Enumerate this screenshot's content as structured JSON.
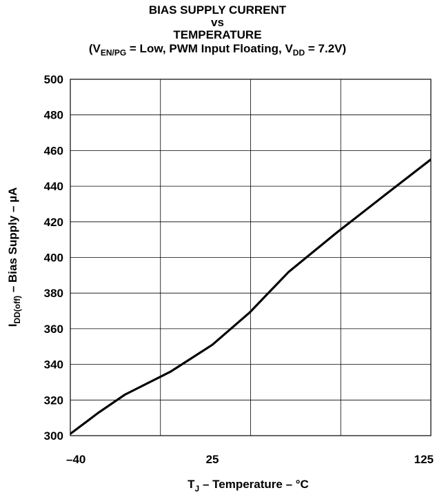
{
  "chart_data": {
    "type": "line",
    "title_lines": [
      "BIAS SUPPLY CURRENT",
      "vs",
      "TEMPERATURE"
    ],
    "condition": {
      "open": "(V",
      "sub1": "EN/PG",
      "mid": " = Low, PWM Input Floating, V",
      "sub2": "DD",
      "close": " = 7.2V)"
    },
    "xlabel": {
      "main": "T",
      "sub": "J",
      "rest": " – Temperature – °C"
    },
    "ylabel": {
      "main": "I",
      "sub": "DD(off)",
      "rest": " – Bias Supply – µA"
    },
    "xlim": [
      -40,
      125
    ],
    "ylim": [
      300,
      500
    ],
    "x_ticks": [
      -40,
      25,
      125
    ],
    "x_tick_labels": [
      "–40",
      "25",
      "125"
    ],
    "x_gridlines": [
      -40,
      1.25,
      42.5,
      83.75,
      125
    ],
    "y_ticks": [
      300,
      320,
      340,
      360,
      380,
      400,
      420,
      440,
      460,
      480,
      500
    ],
    "grid": true,
    "series": [
      {
        "x": [
          -40,
          -27,
          -15,
          6,
          25,
          42,
          60,
          82,
          105,
          125
        ],
        "y": [
          301,
          313,
          323,
          336,
          351,
          369,
          392,
          414,
          436,
          455
        ],
        "color": "#000000"
      }
    ]
  }
}
